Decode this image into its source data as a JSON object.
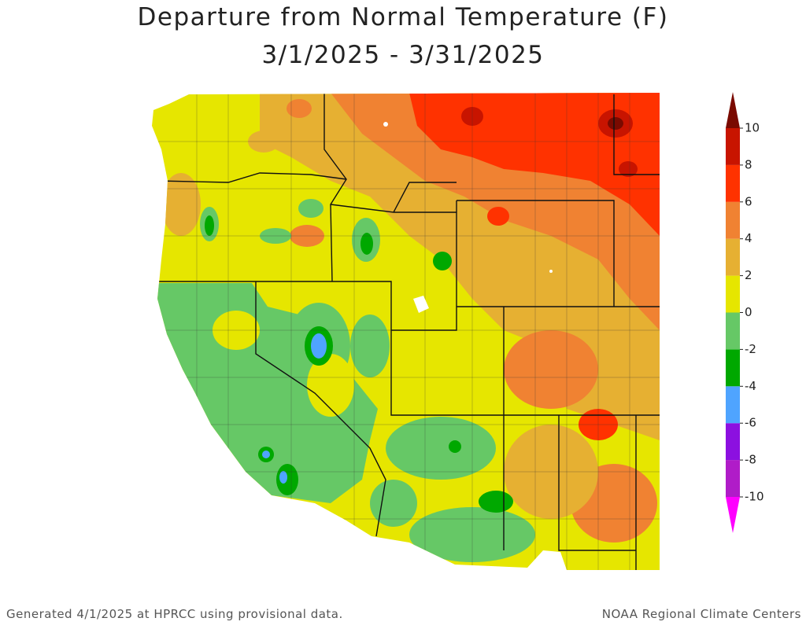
{
  "title": [
    "Departure from Normal Temperature (F)",
    "3/1/2025 - 3/31/2025"
  ],
  "colorbar": {
    "ticks": [
      -10,
      -8,
      -6,
      -4,
      -2,
      0,
      2,
      4,
      6,
      8,
      10
    ],
    "colors": [
      "#b01cc8",
      "#8c10e0",
      "#4fa4ff",
      "#00a800",
      "#66c866",
      "#e6e600",
      "#e6b032",
      "#f08232",
      "#ff3200",
      "#c81400"
    ],
    "under_color": "#ff00ff",
    "over_color": "#7a0a00"
  },
  "footer": {
    "left": "Generated 4/1/2025 at HPRCC using provisional data.",
    "right": "NOAA Regional Climate Centers"
  }
}
